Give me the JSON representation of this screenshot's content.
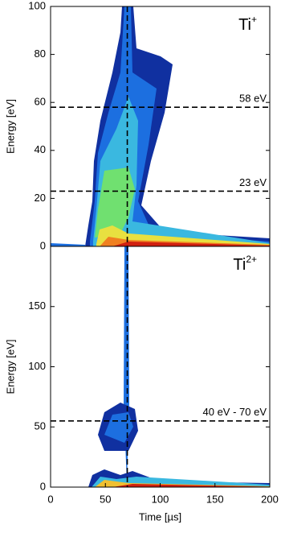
{
  "chart_data": [
    {
      "type": "contour",
      "species": {
        "base": "Ti",
        "sup": "+"
      },
      "ylabel": "Energy [eV]",
      "xlim": [
        0,
        200
      ],
      "ylim": [
        0,
        100
      ],
      "yticks": [
        0,
        20,
        40,
        60,
        80,
        100
      ],
      "hlines": [
        {
          "value": 58,
          "label": "58 eV"
        },
        {
          "value": 23,
          "label": "23 eV"
        }
      ],
      "vline": 70
    },
    {
      "type": "contour",
      "species": {
        "base": "Ti",
        "sup": "2+"
      },
      "ylabel": "Energy [eV]",
      "xlabel": "Time [µs]",
      "xlim": [
        0,
        200
      ],
      "ylim": [
        0,
        200
      ],
      "yticks": [
        0,
        50,
        100,
        150
      ],
      "xticks": [
        0,
        50,
        100,
        150,
        200
      ],
      "hlines": [
        {
          "value": 55,
          "label": "40 eV - 70 eV"
        }
      ],
      "vline": 70
    }
  ]
}
